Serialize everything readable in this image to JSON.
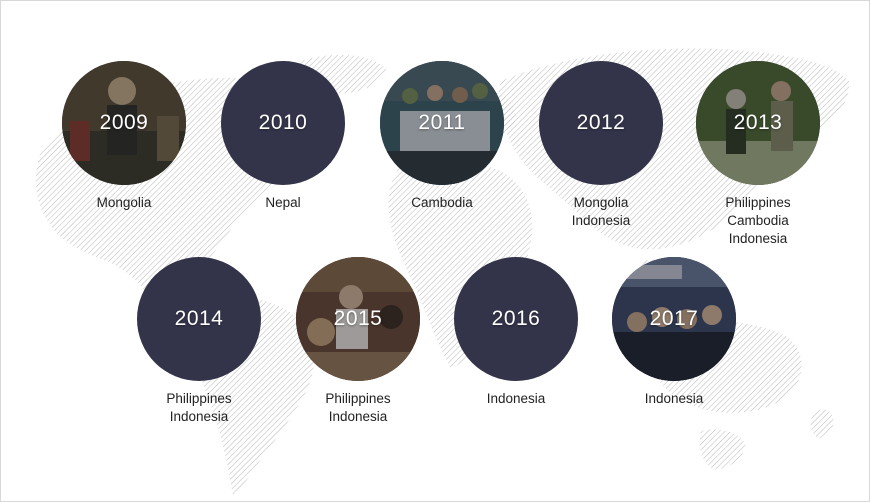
{
  "timeline": [
    {
      "year": "2009",
      "countries": [
        "Mongolia"
      ],
      "photo": true,
      "palette": [
        "#6b5a3c",
        "#c9b18a",
        "#3a3a2a",
        "#8a3b2e"
      ]
    },
    {
      "year": "2010",
      "countries": [
        "Nepal"
      ],
      "photo": false
    },
    {
      "year": "2011",
      "countries": [
        "Cambodia"
      ],
      "photo": true,
      "palette": [
        "#3c5f6a",
        "#cfd9dc",
        "#7a8f5a",
        "#2e3a40"
      ]
    },
    {
      "year": "2012",
      "countries": [
        "Mongolia",
        "Indonesia"
      ],
      "photo": false
    },
    {
      "year": "2013",
      "countries": [
        "Philippines",
        "Cambodia",
        "Indonesia"
      ],
      "photo": true,
      "palette": [
        "#4f6b34",
        "#a8b58a",
        "#2f3d22",
        "#c7c2b0"
      ]
    },
    {
      "year": "2014",
      "countries": [
        "Philippines",
        "Indonesia"
      ],
      "photo": false
    },
    {
      "year": "2015",
      "countries": [
        "Philippines",
        "Indonesia"
      ],
      "photo": true,
      "palette": [
        "#6a4a34",
        "#d8b89a",
        "#3b2a20",
        "#9a7a5a"
      ]
    },
    {
      "year": "2016",
      "countries": [
        "Indonesia"
      ],
      "photo": false
    },
    {
      "year": "2017",
      "countries": [
        "Indonesia"
      ],
      "photo": true,
      "palette": [
        "#3a4a6a",
        "#c8ccd8",
        "#1e2430",
        "#6a7a9a"
      ]
    }
  ],
  "colors": {
    "circle": "#33344a",
    "map_hatch": "#bdbdbd",
    "text": "#222222"
  }
}
